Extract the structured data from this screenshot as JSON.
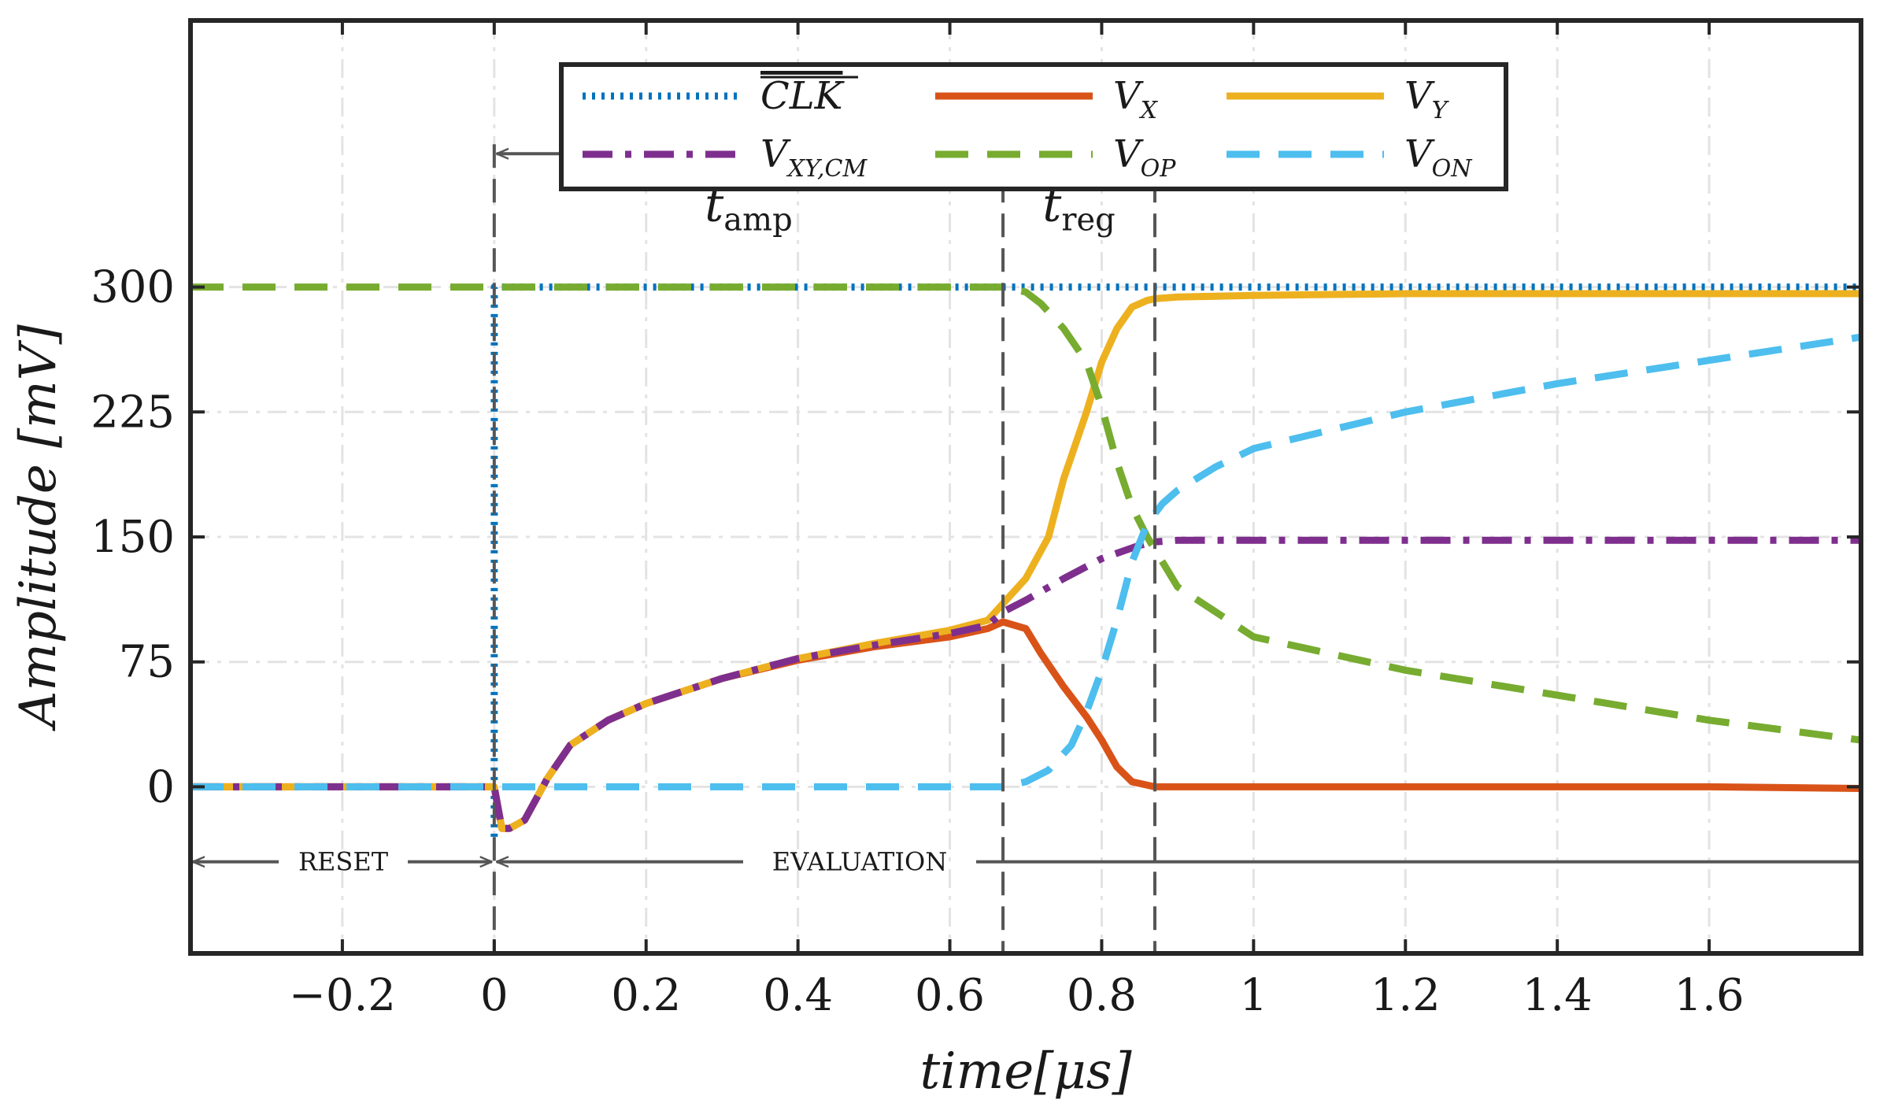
{
  "chart_data": {
    "type": "line",
    "title": "",
    "xlabel": "time[μs]",
    "ylabel": "Amplitude [mV]",
    "xlim": [
      -0.4,
      1.8
    ],
    "ylim": [
      -100,
      460
    ],
    "xticks": [
      -0.2,
      0,
      0.2,
      0.4,
      0.6,
      0.8,
      1,
      1.2,
      1.4,
      1.6
    ],
    "xtick_labels": [
      "−0.2",
      "0",
      "0.2",
      "0.4",
      "0.6",
      "0.8",
      "1",
      "1.2",
      "1.4",
      "1.6"
    ],
    "yticks": [
      0,
      75,
      150,
      225,
      300
    ],
    "ytick_labels": [
      "0",
      "75",
      "150",
      "225",
      "300"
    ],
    "grid": true,
    "legend_position": "top-center",
    "series": [
      {
        "id": "clk",
        "name": "CLK",
        "name_overline": true,
        "sub": "",
        "color": "#0072BD",
        "style": "dotted",
        "x": [
          -0.4,
          -0.0001,
          0,
          0.0001,
          1.8
        ],
        "y": [
          null,
          null,
          -30,
          300,
          300
        ]
      },
      {
        "id": "vx",
        "name": "V",
        "sub": "X",
        "color": "#D95319",
        "style": "solid",
        "x": [
          -0.4,
          0,
          0.01,
          0.02,
          0.04,
          0.07,
          0.1,
          0.15,
          0.2,
          0.3,
          0.4,
          0.5,
          0.6,
          0.65,
          0.67,
          0.7,
          0.72,
          0.75,
          0.78,
          0.8,
          0.82,
          0.84,
          0.87,
          1.0,
          1.2,
          1.4,
          1.6,
          1.8
        ],
        "y": [
          0,
          0,
          -25,
          -25,
          -20,
          5,
          25,
          40,
          50,
          65,
          76,
          84,
          90,
          95,
          99,
          95,
          80,
          60,
          42,
          28,
          12,
          3,
          0,
          0,
          0,
          0,
          0,
          -1
        ]
      },
      {
        "id": "vy",
        "name": "V",
        "sub": "Y",
        "color": "#EDB120",
        "style": "solid",
        "x": [
          -0.4,
          0,
          0.01,
          0.02,
          0.04,
          0.07,
          0.1,
          0.15,
          0.2,
          0.3,
          0.4,
          0.5,
          0.6,
          0.65,
          0.67,
          0.7,
          0.73,
          0.75,
          0.78,
          0.8,
          0.82,
          0.84,
          0.86,
          0.87,
          0.9,
          1.0,
          1.2,
          1.4,
          1.6,
          1.8
        ],
        "y": [
          0,
          0,
          -25,
          -25,
          -20,
          5,
          25,
          40,
          50,
          65,
          77,
          86,
          94,
          100,
          110,
          125,
          150,
          185,
          225,
          255,
          275,
          288,
          292,
          293,
          294,
          295,
          296,
          296,
          296,
          296
        ]
      },
      {
        "id": "vxycm",
        "name": "V",
        "sub": "XY,CM",
        "color": "#7E2F8E",
        "style": "dashdot",
        "x": [
          -0.4,
          0,
          0.01,
          0.02,
          0.04,
          0.07,
          0.1,
          0.15,
          0.2,
          0.3,
          0.4,
          0.5,
          0.6,
          0.65,
          0.67,
          0.7,
          0.75,
          0.8,
          0.85,
          0.87,
          0.9,
          1.0,
          1.2,
          1.4,
          1.6,
          1.8
        ],
        "y": [
          0,
          0,
          -25,
          -25,
          -20,
          5,
          25,
          40,
          50,
          65,
          77,
          85,
          92,
          97,
          105,
          112,
          125,
          137,
          145,
          147,
          148,
          148,
          148,
          148,
          148,
          148
        ]
      },
      {
        "id": "vop",
        "name": "V",
        "sub": "OP",
        "color": "#77AC30",
        "style": "dashed",
        "x": [
          -0.4,
          0,
          0.3,
          0.5,
          0.6,
          0.67,
          0.7,
          0.72,
          0.75,
          0.78,
          0.8,
          0.82,
          0.84,
          0.86,
          0.88,
          0.9,
          1.0,
          1.2,
          1.4,
          1.6,
          1.8
        ],
        "y": [
          300,
          300,
          300,
          300,
          300,
          300,
          297,
          290,
          275,
          255,
          228,
          195,
          168,
          150,
          135,
          120,
          90,
          70,
          55,
          40,
          28
        ]
      },
      {
        "id": "von",
        "name": "V",
        "sub": "ON",
        "color": "#4DBEEE",
        "style": "dashed",
        "x": [
          -0.4,
          0,
          0.3,
          0.5,
          0.6,
          0.67,
          0.7,
          0.73,
          0.76,
          0.78,
          0.8,
          0.82,
          0.84,
          0.86,
          0.88,
          0.9,
          0.95,
          1.0,
          1.2,
          1.4,
          1.6,
          1.8
        ],
        "y": [
          0,
          0,
          0,
          0,
          0,
          0,
          3,
          10,
          25,
          45,
          70,
          100,
          135,
          158,
          170,
          178,
          192,
          203,
          225,
          242,
          256,
          270
        ]
      }
    ],
    "annotations": {
      "vlines": [
        0,
        0.67,
        0.87
      ],
      "t_amp": {
        "label": "t",
        "sub": "amp",
        "from": 0,
        "to": 0.67,
        "y": 380
      },
      "t_reg": {
        "label": "t",
        "sub": "reg",
        "from": 0.67,
        "to": 0.87,
        "y": 380
      },
      "reset": {
        "label": "RESET",
        "from": -0.4,
        "to": 0,
        "y": -45
      },
      "evaluation": {
        "label": "EVALUATION",
        "from": 0,
        "to": 1.8,
        "y": -45
      }
    }
  }
}
